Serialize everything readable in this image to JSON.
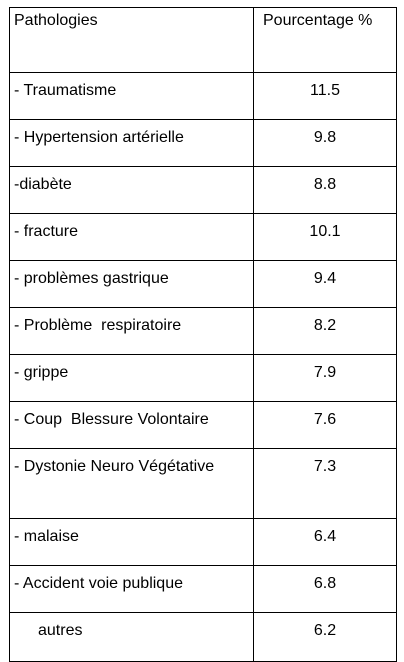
{
  "table": {
    "headers": {
      "pathology": "Pathologies",
      "percentage": "Pourcentage %"
    },
    "rows": [
      {
        "pathology": "- Traumatisme",
        "percentage": "11.5"
      },
      {
        "pathology": "- Hypertension artérielle",
        "percentage": "9.8"
      },
      {
        "pathology": "-diabète",
        "percentage": "8.8"
      },
      {
        "pathology": "- fracture",
        "percentage": "10.1"
      },
      {
        "pathology": "- problèmes gastrique",
        "percentage": "9.4"
      },
      {
        "pathology": "- Problème  respiratoire",
        "percentage": "8.2"
      },
      {
        "pathology": "- grippe",
        "percentage": "7.9"
      },
      {
        "pathology": "- Coup  Blessure Volontaire",
        "percentage": "7.6"
      },
      {
        "pathology": "-       Dystonie       Neuro Végétative",
        "percentage": "7.3"
      },
      {
        "pathology": "- malaise",
        "percentage": "6.4"
      },
      {
        "pathology": "- Accident voie publique",
        "percentage": "6.8"
      },
      {
        "pathology": "autres",
        "percentage": "6.2"
      }
    ]
  }
}
